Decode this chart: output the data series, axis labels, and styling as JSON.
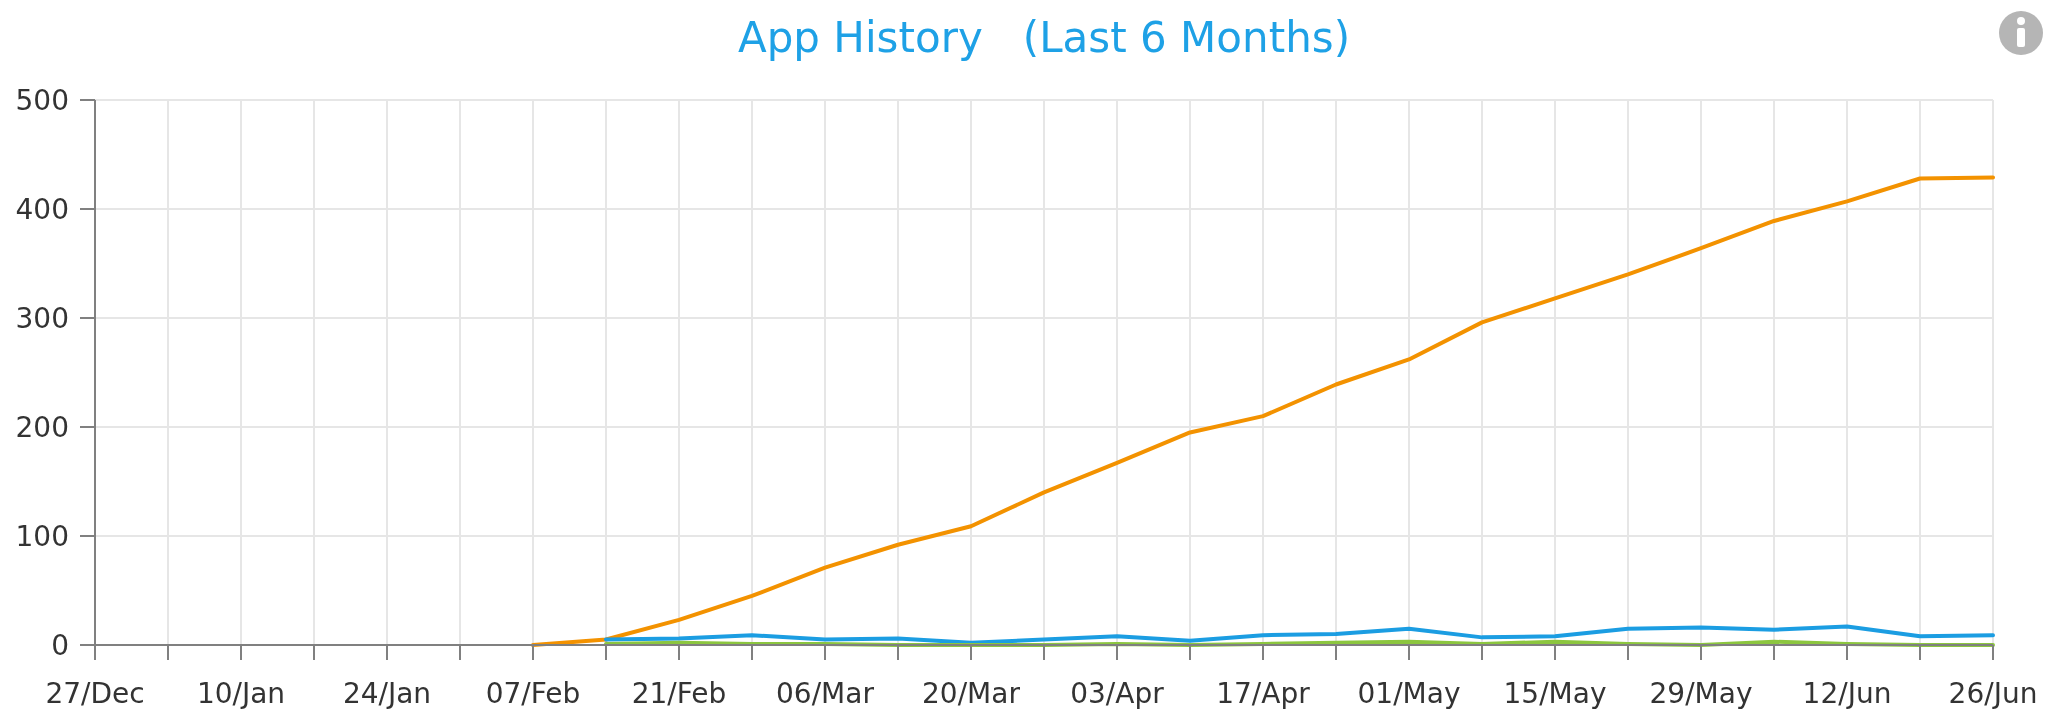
{
  "chart_data": {
    "type": "line",
    "title": "App History   (Last 6 Months)",
    "categories": [
      "27/Dec",
      null,
      "10/Jan",
      null,
      "24/Jan",
      null,
      "07/Feb",
      null,
      "21/Feb",
      null,
      "06/Mar",
      null,
      "20/Mar",
      null,
      "03/Apr",
      null,
      "17/Apr",
      null,
      "01/May",
      null,
      "15/May",
      null,
      "29/May",
      null,
      "12/Jun",
      null,
      "26/Jun"
    ],
    "series": [
      {
        "color": "#f39200",
        "values": [
          null,
          null,
          null,
          null,
          null,
          null,
          0,
          5,
          23,
          45,
          71,
          92,
          109,
          140,
          167,
          195,
          210,
          239,
          262,
          296,
          318,
          340,
          364,
          389,
          407,
          428,
          429
        ]
      },
      {
        "color": "#1b9de2",
        "values": [
          null,
          null,
          null,
          null,
          null,
          null,
          null,
          5,
          6,
          9,
          5,
          6,
          2,
          5,
          8,
          4,
          9,
          10,
          15,
          7,
          8,
          15,
          16,
          14,
          17,
          8,
          9
        ]
      },
      {
        "color": "#8cc63f",
        "values": [
          null,
          null,
          null,
          null,
          null,
          null,
          null,
          1,
          2,
          1,
          1,
          0,
          0,
          0,
          1,
          0,
          1,
          2,
          3,
          1,
          3,
          1,
          0,
          3,
          1,
          0,
          0
        ]
      }
    ],
    "ylim": [
      0,
      500
    ],
    "yticks": [
      0,
      100,
      200,
      300,
      400,
      500
    ],
    "grid": true
  }
}
